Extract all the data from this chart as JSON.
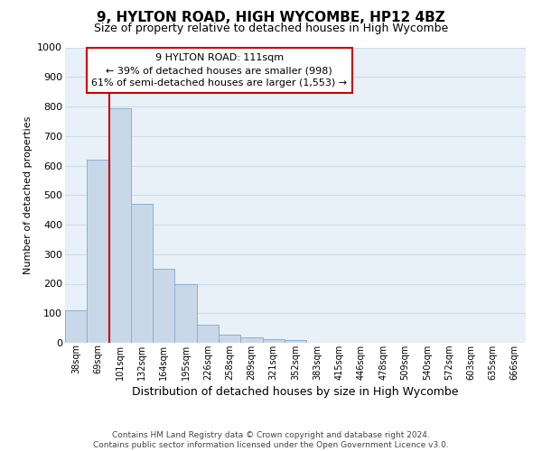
{
  "title": "9, HYLTON ROAD, HIGH WYCOMBE, HP12 4BZ",
  "subtitle": "Size of property relative to detached houses in High Wycombe",
  "xlabel": "Distribution of detached houses by size in High Wycombe",
  "ylabel": "Number of detached properties",
  "bar_values": [
    110,
    620,
    795,
    470,
    250,
    200,
    60,
    27,
    17,
    12,
    8,
    0,
    0,
    0,
    0,
    0,
    0,
    0,
    0,
    0,
    0
  ],
  "bar_labels": [
    "38sqm",
    "69sqm",
    "101sqm",
    "132sqm",
    "164sqm",
    "195sqm",
    "226sqm",
    "258sqm",
    "289sqm",
    "321sqm",
    "352sqm",
    "383sqm",
    "415sqm",
    "446sqm",
    "478sqm",
    "509sqm",
    "540sqm",
    "572sqm",
    "603sqm",
    "635sqm",
    "666sqm"
  ],
  "n_bars": 21,
  "bar_color": "#c8d8e8",
  "bar_edge_color": "#8cb0cc",
  "grid_color": "#d0dce8",
  "bg_color": "#e8f0f8",
  "vline_color": "#cc0000",
  "vline_x_index": 2,
  "ylim": [
    0,
    1000
  ],
  "yticks": [
    0,
    100,
    200,
    300,
    400,
    500,
    600,
    700,
    800,
    900,
    1000
  ],
  "annotation_title": "9 HYLTON ROAD: 111sqm",
  "annotation_line1": "← 39% of detached houses are smaller (998)",
  "annotation_line2": "61% of semi-detached houses are larger (1,553) →",
  "annotation_box_color": "white",
  "annotation_box_edge": "#cc0000",
  "footer1": "Contains HM Land Registry data © Crown copyright and database right 2024.",
  "footer2": "Contains public sector information licensed under the Open Government Licence v3.0."
}
